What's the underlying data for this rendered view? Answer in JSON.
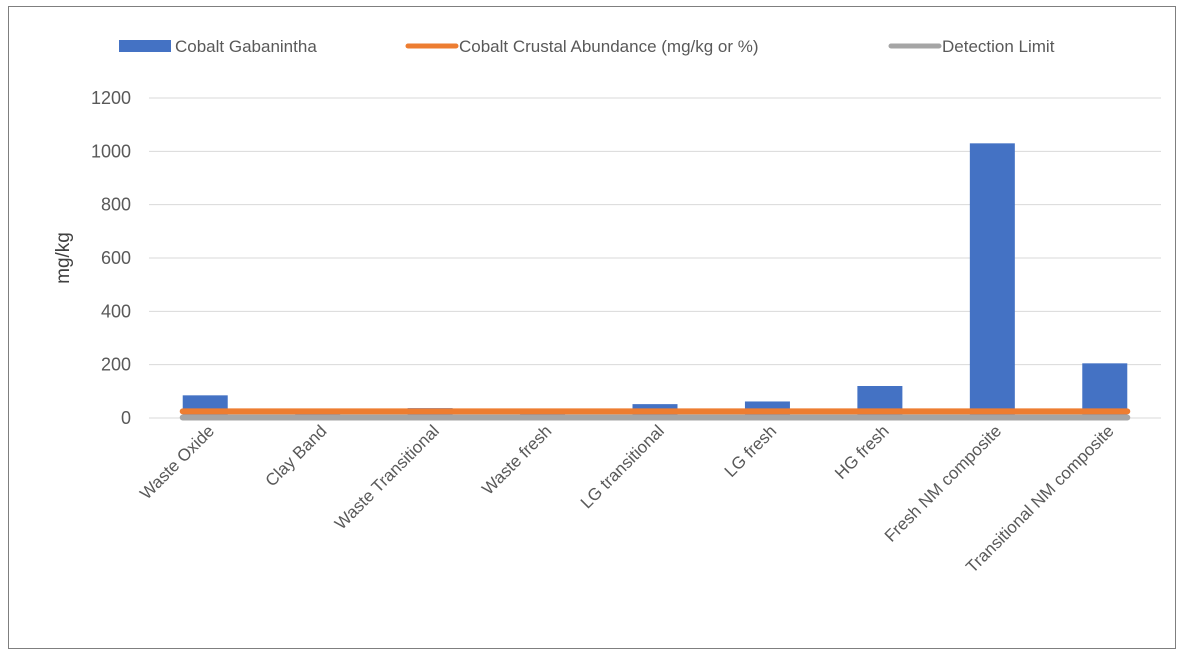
{
  "chart_data": {
    "type": "bar",
    "title": "",
    "xlabel": "",
    "ylabel": "mg/kg",
    "ylim": [
      0,
      1200
    ],
    "yticks": [
      0,
      200,
      400,
      600,
      800,
      1000,
      1200
    ],
    "grid": true,
    "legend_position": "top",
    "categories": [
      "Waste Oxide",
      "Clay Band",
      "Waste Transitional",
      "Waste fresh",
      "LG transitional",
      "LG fresh",
      "HG fresh",
      "Fresh NM composite",
      "Transitional NM composite"
    ],
    "series": [
      {
        "name": "Cobalt Gabanintha",
        "kind": "bar",
        "color": "#4472c4",
        "values": [
          85,
          20,
          37,
          32,
          52,
          62,
          120,
          1030,
          205
        ]
      },
      {
        "name": "Cobalt Crustal Abundance (mg/kg or %)",
        "kind": "line",
        "color": "#ed7d31",
        "values": [
          25,
          25,
          25,
          25,
          25,
          25,
          25,
          25,
          25
        ]
      },
      {
        "name": "Detection Limit",
        "kind": "line",
        "color": "#a5a5a5",
        "values": [
          2,
          2,
          2,
          2,
          2,
          2,
          2,
          2,
          2
        ]
      }
    ]
  }
}
